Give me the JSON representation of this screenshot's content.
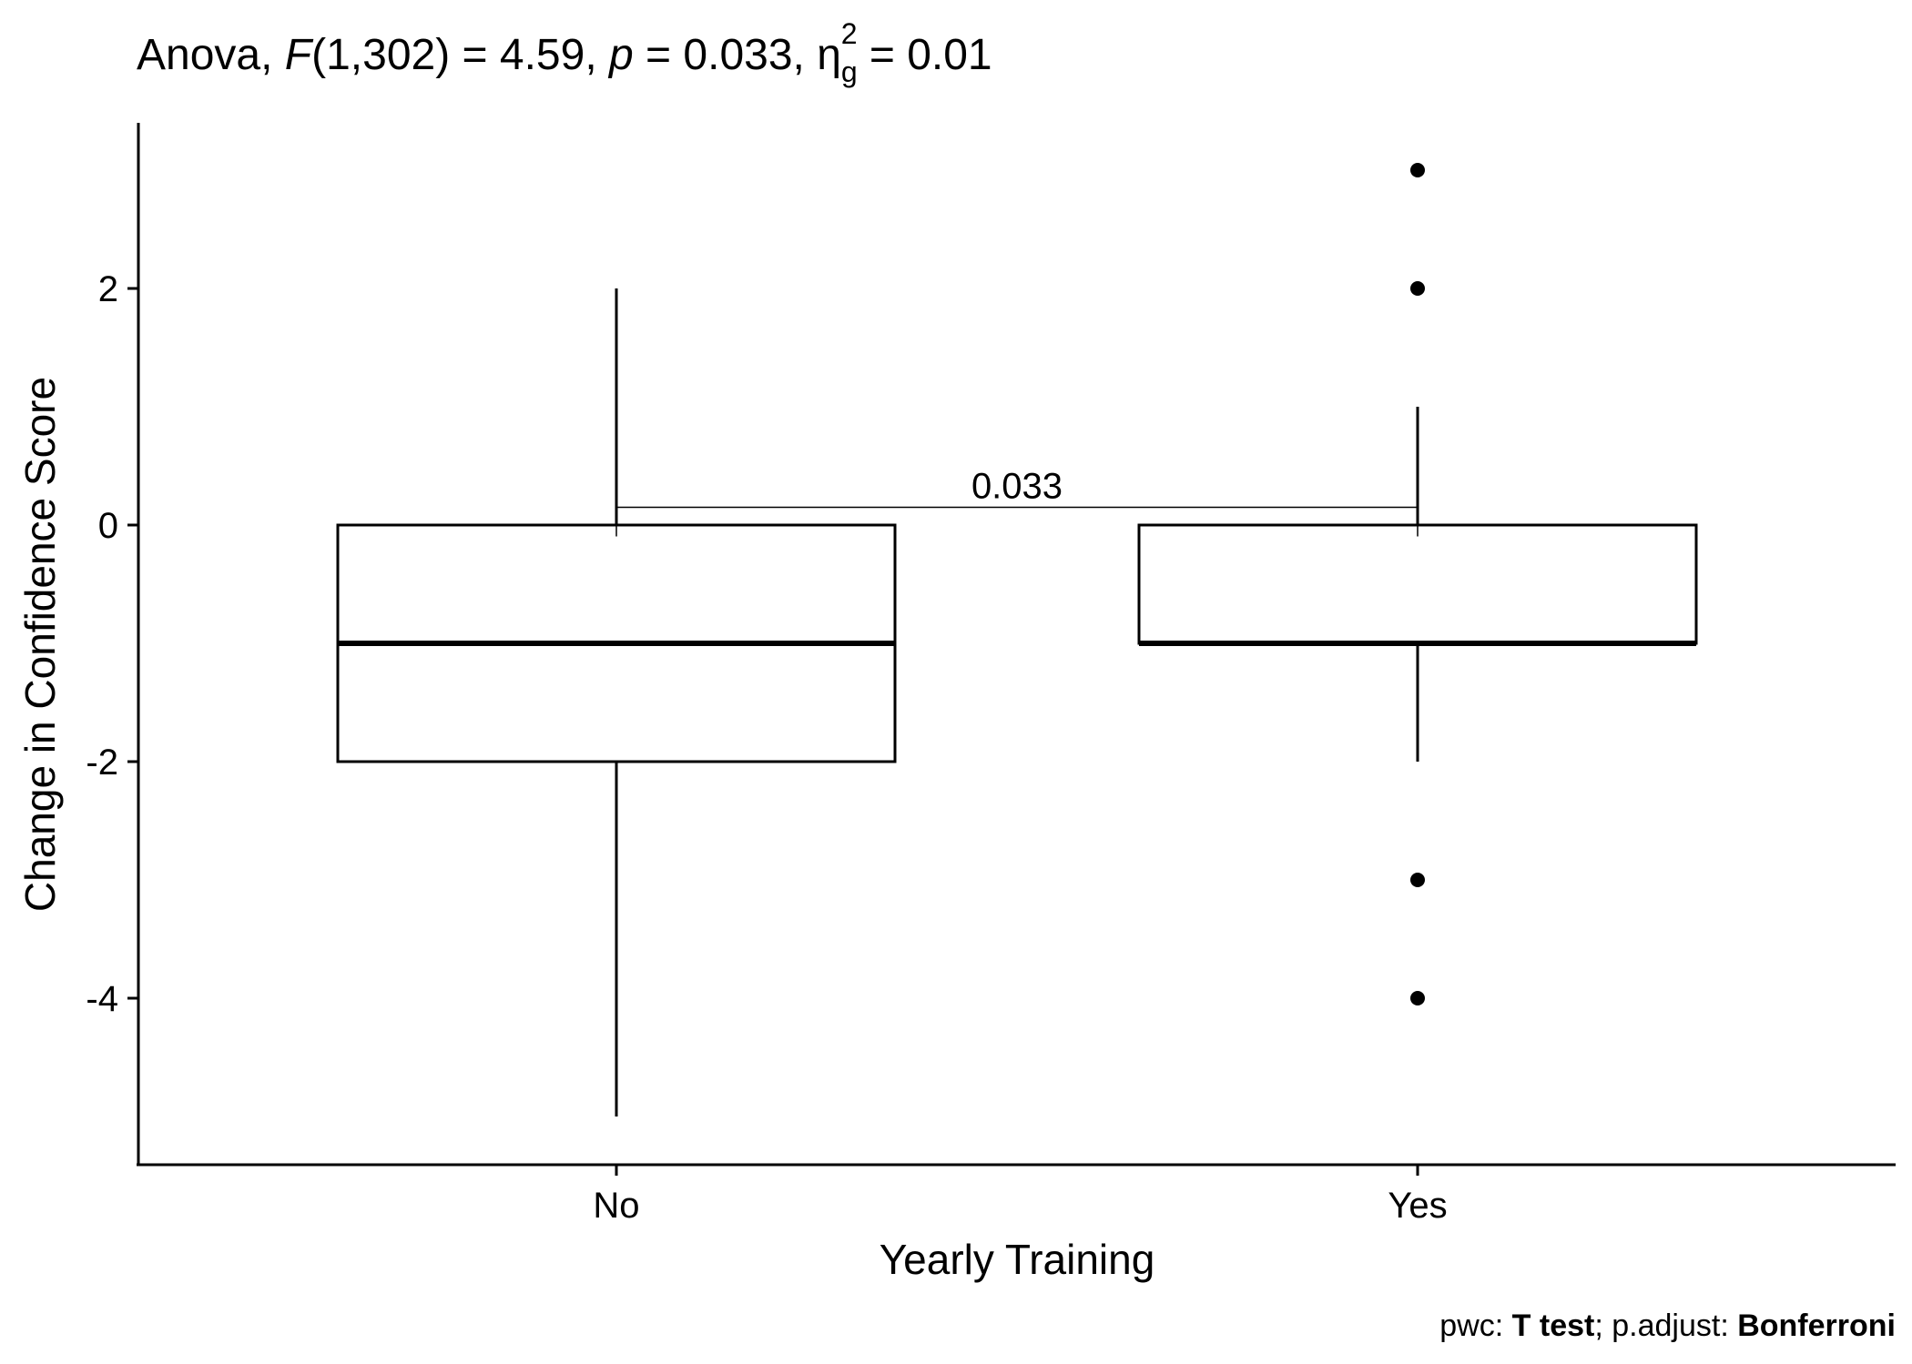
{
  "chart_data": {
    "type": "boxplot",
    "title": {
      "prefix": "Anova, ",
      "f_symbol": "F",
      "f_args": "(1,302) = 4.59, ",
      "p_symbol": "p",
      "p_value": " = 0.033, ",
      "eta_symbol": "η",
      "eta_sub": "g",
      "eta_sup": "2",
      "eta_value": " = 0.01"
    },
    "xlabel": "Yearly Training",
    "ylabel": "Change in Confidence Score",
    "ylim": [
      -5.5,
      3.2
    ],
    "y_ticks": [
      -4,
      -2,
      0,
      2
    ],
    "y_tick_labels": [
      "-4",
      "-2",
      "0",
      "2"
    ],
    "categories": [
      "No",
      "Yes"
    ],
    "boxes": [
      {
        "category": "No",
        "whisker_low": -5,
        "q1": -2,
        "median": -1,
        "q3": 0,
        "whisker_high": 2,
        "outliers": []
      },
      {
        "category": "Yes",
        "whisker_low": -2,
        "q1": -1,
        "median": -1,
        "q3": 0,
        "whisker_high": 1,
        "outliers": [
          3,
          2,
          -3,
          -4
        ]
      }
    ],
    "comparison": {
      "from": "No",
      "to": "Yes",
      "y": 0.15,
      "label": "0.033"
    },
    "caption": {
      "pwc_label": "pwc: ",
      "pwc_value": "T test",
      "sep": "; p.adjust: ",
      "adjust_value": "Bonferroni"
    },
    "grid": false,
    "legend": "none"
  }
}
